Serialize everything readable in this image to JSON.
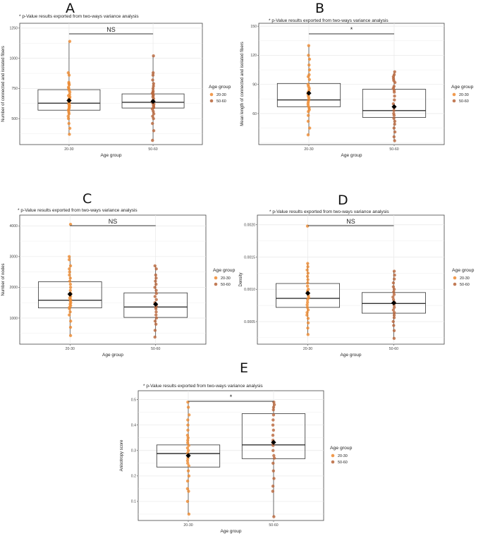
{
  "colors": {
    "group_20_30": "#ee8a30",
    "group_50_60": "#b9653a",
    "grid": "#e8e8e8",
    "box": "#333333",
    "mean": "#000000",
    "frame": "#444444"
  },
  "chart_data": [
    {
      "id": "A",
      "type": "box",
      "note": "* p-Value results exported from two-ways variance analysis",
      "significance": "NS",
      "xlabel": "Age group",
      "ylabel": "Number of connected and isolated fibers",
      "categories": [
        "20-30",
        "50-60"
      ],
      "ylim": [
        285,
        1290
      ],
      "yticks": [
        500,
        750,
        1000,
        1250
      ],
      "yticklabels": [
        "500",
        "750",
        "1000",
        "1250"
      ],
      "legend": {
        "title": "Age group",
        "items": [
          "20-30",
          "50-60"
        ]
      },
      "boxes": [
        {
          "q1": 570,
          "median": 628,
          "q3": 740,
          "lower": 370,
          "upper": 1140,
          "mean": 650
        },
        {
          "q1": 588,
          "median": 635,
          "q3": 705,
          "lower": 320,
          "upper": 1020,
          "mean": 643
        }
      ],
      "points": [
        [
          1140,
          880,
          860,
          800,
          790,
          780,
          760,
          750,
          735,
          720,
          700,
          690,
          680,
          670,
          660,
          650,
          640,
          630,
          620,
          610,
          600,
          590,
          580,
          570,
          555,
          540,
          520,
          500,
          460,
          420,
          370
        ],
        [
          1020,
          880,
          860,
          820,
          790,
          770,
          750,
          730,
          720,
          710,
          700,
          690,
          680,
          665,
          650,
          640,
          630,
          620,
          610,
          600,
          590,
          580,
          560,
          540,
          520,
          500,
          460,
          400,
          320
        ]
      ]
    },
    {
      "id": "B",
      "type": "box",
      "note": "* p-Value results exported from two-ways variance analysis",
      "significance": "*",
      "xlabel": "Age group",
      "ylabel": "Mean length of connected and isolated fibers",
      "categories": [
        "20-30",
        "50-60"
      ],
      "ylim": [
        28,
        153
      ],
      "yticks": [
        60,
        90,
        120,
        150
      ],
      "yticklabels": [
        "60",
        "90",
        "120",
        "150"
      ],
      "legend": {
        "title": "Age group",
        "items": [
          "20-30",
          "50-60"
        ]
      },
      "boxes": [
        {
          "q1": 67,
          "median": 74,
          "q3": 91,
          "lower": 38,
          "upper": 130,
          "mean": 81
        },
        {
          "q1": 56,
          "median": 63,
          "q3": 85,
          "lower": 32,
          "upper": 103,
          "mean": 67
        }
      ],
      "points": [
        [
          130,
          120,
          116,
          110,
          105,
          100,
          98,
          95,
          90,
          88,
          86,
          84,
          82,
          80,
          78,
          76,
          74,
          72,
          70,
          68,
          66,
          64,
          62,
          58,
          52,
          45,
          38
        ],
        [
          103,
          100,
          98,
          96,
          94,
          92,
          88,
          86,
          84,
          82,
          78,
          74,
          70,
          66,
          63,
          60,
          58,
          55,
          52,
          49,
          45,
          41,
          36,
          32
        ]
      ]
    },
    {
      "id": "C",
      "type": "box",
      "note": "* p-Value results exported from two-ways variance analysis",
      "significance": "NS",
      "xlabel": "Age group",
      "ylabel": "Number of nodes",
      "categories": [
        "20-30",
        "50-60"
      ],
      "ylim": [
        150,
        4350
      ],
      "yticks": [
        1000,
        2000,
        3000,
        4000
      ],
      "yticklabels": [
        "1000",
        "2000",
        "3000",
        "4000"
      ],
      "legend": {
        "title": "Age group",
        "items": [
          "20-30",
          "50-60"
        ]
      },
      "boxes": [
        {
          "q1": 1330,
          "median": 1580,
          "q3": 2180,
          "lower": 430,
          "upper": 3000,
          "mean": 1780
        },
        {
          "q1": 1020,
          "median": 1360,
          "q3": 1820,
          "lower": 380,
          "upper": 2700,
          "mean": 1450
        }
      ],
      "points": [
        [
          4050,
          3000,
          2900,
          2700,
          2600,
          2500,
          2400,
          2300,
          2200,
          2100,
          2000,
          1900,
          1800,
          1750,
          1700,
          1650,
          1600,
          1550,
          1500,
          1450,
          1400,
          1350,
          1300,
          1200,
          1100,
          900,
          700,
          430
        ],
        [
          2700,
          2600,
          2400,
          2300,
          2200,
          2100,
          2000,
          1900,
          1800,
          1700,
          1600,
          1500,
          1450,
          1400,
          1350,
          1300,
          1200,
          1100,
          1000,
          900,
          800,
          600,
          380
        ]
      ]
    },
    {
      "id": "D",
      "type": "box",
      "note": "* p-Value results exported from two-ways variance analysis",
      "significance": "NS",
      "xlabel": "Age group",
      "ylabel": "Density",
      "categories": [
        "20-30",
        "50-60"
      ],
      "ylim": [
        0.00015,
        0.00215
      ],
      "yticks": [
        0.0005,
        0.001,
        0.0015,
        0.002
      ],
      "yticklabels": [
        "0.0005",
        "0.0010",
        "0.0015",
        "0.0020"
      ],
      "legend": {
        "title": "Age group",
        "items": [
          "20-30",
          "50-60"
        ]
      },
      "boxes": [
        {
          "q1": 0.00072,
          "median": 0.00086,
          "q3": 0.00109,
          "lower": 0.0003,
          "upper": 0.0014,
          "mean": 0.00094
        },
        {
          "q1": 0.00063,
          "median": 0.00078,
          "q3": 0.00095,
          "lower": 0.00024,
          "upper": 0.00128,
          "mean": 0.00079
        }
      ],
      "points": [
        [
          0.00198,
          0.0014,
          0.00135,
          0.0013,
          0.00125,
          0.0012,
          0.00115,
          0.0011,
          0.00105,
          0.001,
          0.00097,
          0.00094,
          0.0009,
          0.00087,
          0.00084,
          0.0008,
          0.00076,
          0.00072,
          0.00068,
          0.00064,
          0.0006,
          0.00055,
          0.00048,
          0.0004,
          0.0003
        ],
        [
          0.00128,
          0.00122,
          0.00116,
          0.0011,
          0.00104,
          0.001,
          0.00096,
          0.00092,
          0.00088,
          0.00084,
          0.0008,
          0.00076,
          0.00072,
          0.00068,
          0.00064,
          0.0006,
          0.00056,
          0.0005,
          0.00044,
          0.00036,
          0.00024
        ]
      ]
    },
    {
      "id": "E",
      "type": "box",
      "note": "* p-Value results exported from two-ways variance analysis",
      "significance": "*",
      "xlabel": "Age group",
      "ylabel": "Anisotropy score",
      "categories": [
        "20-30",
        "50-60"
      ],
      "ylim": [
        0.025,
        0.535
      ],
      "yticks": [
        0.1,
        0.2,
        0.3,
        0.4,
        0.5
      ],
      "yticklabels": [
        "0.1",
        "0.2",
        "0.3",
        "0.4",
        "0.5"
      ],
      "legend": {
        "title": "Age group",
        "items": [
          "20-30",
          "50-60"
        ]
      },
      "boxes": [
        {
          "q1": 0.235,
          "median": 0.288,
          "q3": 0.322,
          "lower": 0.05,
          "upper": 0.49,
          "mean": 0.28
        },
        {
          "q1": 0.268,
          "median": 0.322,
          "q3": 0.445,
          "lower": 0.04,
          "upper": 0.49,
          "mean": 0.332
        }
      ],
      "points": [
        [
          0.49,
          0.47,
          0.44,
          0.42,
          0.4,
          0.38,
          0.36,
          0.35,
          0.34,
          0.33,
          0.32,
          0.31,
          0.3,
          0.29,
          0.28,
          0.27,
          0.26,
          0.25,
          0.24,
          0.22,
          0.2,
          0.18,
          0.15,
          0.14,
          0.1,
          0.05
        ],
        [
          0.49,
          0.48,
          0.47,
          0.46,
          0.44,
          0.42,
          0.4,
          0.38,
          0.36,
          0.34,
          0.33,
          0.32,
          0.3,
          0.28,
          0.27,
          0.25,
          0.22,
          0.19,
          0.16,
          0.14,
          0.04
        ]
      ]
    }
  ]
}
